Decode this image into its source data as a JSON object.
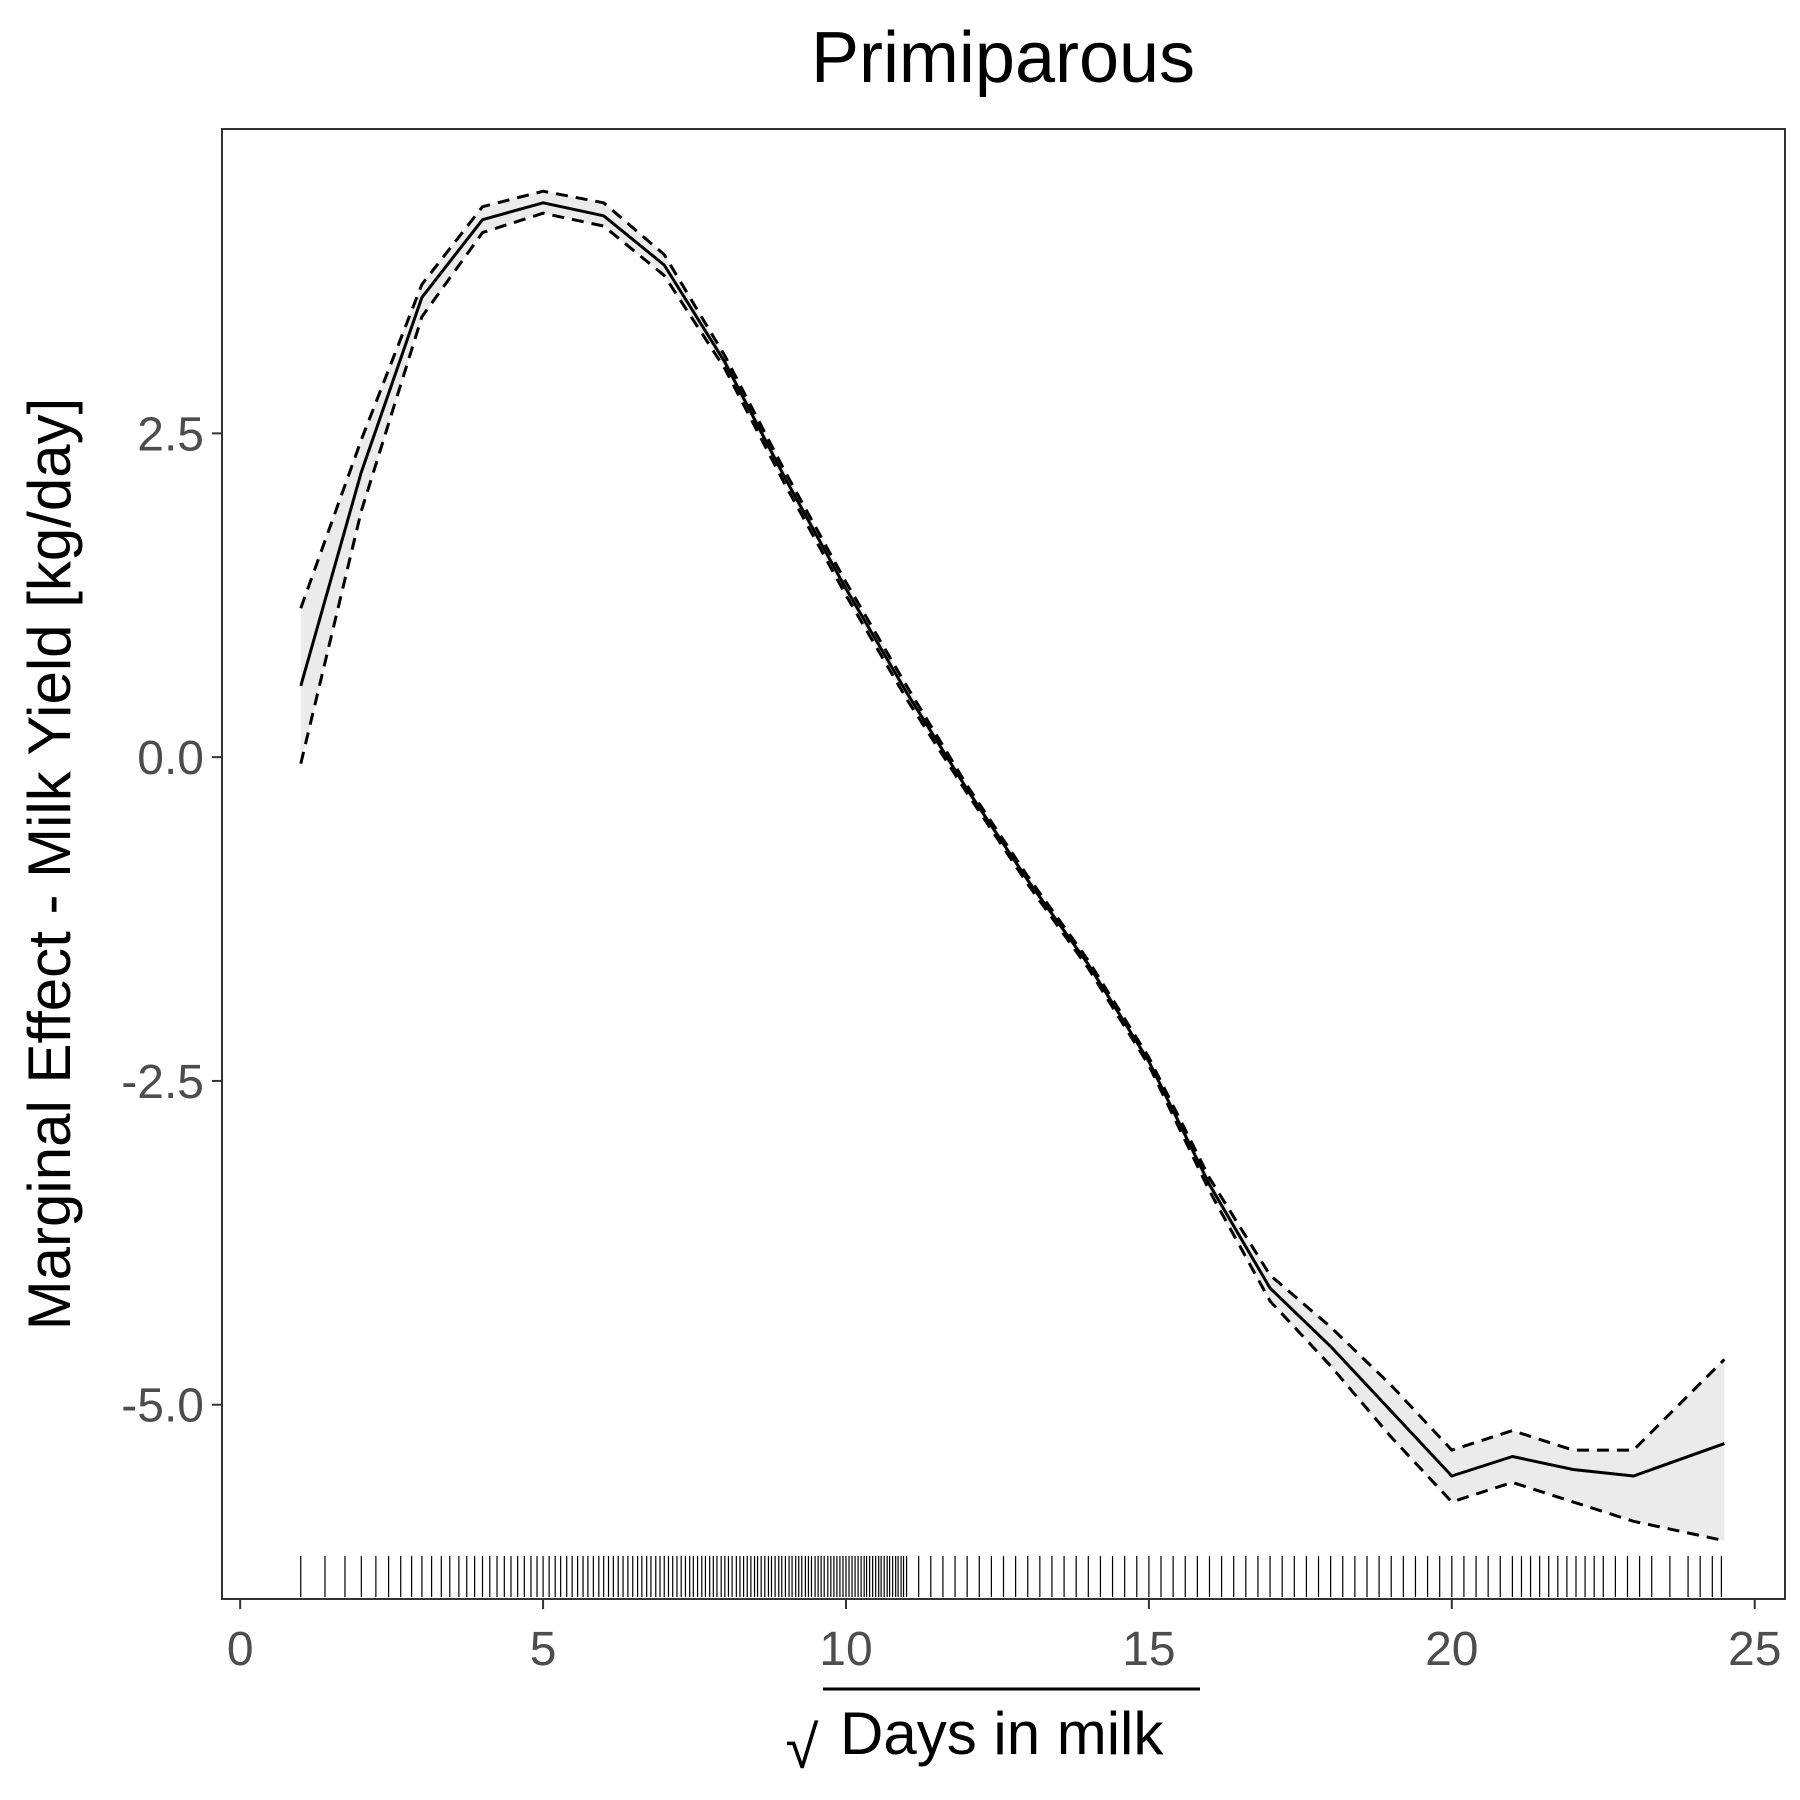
{
  "chart_data": {
    "type": "line",
    "title": "Primiparous",
    "xlabel": "Days in milk",
    "xlabel_radical": "√",
    "ylabel": "Marginal Effect - Milk Yield [kg/day]",
    "xlim": [
      -0.3,
      25.5
    ],
    "ylim": [
      -6.5,
      4.85
    ],
    "x_ticks": [
      0,
      5,
      10,
      15,
      20,
      25
    ],
    "x_tick_labels": [
      "0",
      "5",
      "10",
      "15",
      "20",
      "25"
    ],
    "y_ticks": [
      -5.0,
      -2.5,
      0.0,
      2.5
    ],
    "y_tick_labels": [
      "-5.0",
      "-2.5",
      "0.0",
      "2.5"
    ],
    "grid": false,
    "colors": {
      "line": "#000000",
      "ribbon": "#ebebeb",
      "panel_border": "#333333",
      "tick_label": "#4d4d4d"
    },
    "series": [
      {
        "role": "estimate",
        "style": "solid",
        "x": [
          1,
          2,
          3,
          4,
          5,
          6,
          7,
          8,
          9,
          10,
          11,
          12,
          13,
          14,
          15,
          16,
          17,
          18,
          19,
          20,
          21,
          22,
          23,
          24.5
        ],
        "y": [
          0.55,
          2.2,
          3.55,
          4.15,
          4.28,
          4.18,
          3.8,
          3.05,
          2.15,
          1.3,
          0.5,
          -0.25,
          -0.95,
          -1.6,
          -2.35,
          -3.3,
          -4.1,
          -4.55,
          -5.05,
          -5.55,
          -5.4,
          -5.5,
          -5.55,
          -5.3
        ]
      },
      {
        "role": "upper",
        "style": "dashed",
        "x": [
          1,
          2,
          3,
          4,
          5,
          6,
          7,
          8,
          9,
          10,
          11,
          12,
          13,
          14,
          15,
          16,
          17,
          18,
          19,
          20,
          21,
          22,
          23,
          24.5
        ],
        "y": [
          1.15,
          2.45,
          3.65,
          4.25,
          4.37,
          4.28,
          3.88,
          3.1,
          2.2,
          1.35,
          0.55,
          -0.22,
          -0.92,
          -1.57,
          -2.32,
          -3.25,
          -4.0,
          -4.4,
          -4.85,
          -5.35,
          -5.2,
          -5.35,
          -5.35,
          -4.65
        ]
      },
      {
        "role": "lower",
        "style": "dashed",
        "x": [
          1,
          2,
          3,
          4,
          5,
          6,
          7,
          8,
          9,
          10,
          11,
          12,
          13,
          14,
          15,
          16,
          17,
          18,
          19,
          20,
          21,
          22,
          23,
          24.5
        ],
        "y": [
          -0.05,
          1.9,
          3.4,
          4.05,
          4.2,
          4.1,
          3.72,
          3.0,
          2.1,
          1.25,
          0.45,
          -0.28,
          -0.98,
          -1.63,
          -2.38,
          -3.35,
          -4.2,
          -4.7,
          -5.25,
          -5.75,
          -5.6,
          -5.75,
          -5.9,
          -6.05
        ]
      }
    ],
    "rug_x": [
      1.0,
      1.4,
      1.73,
      2.0,
      2.24,
      2.45,
      2.65,
      2.83,
      3.0,
      3.16,
      3.32,
      3.46,
      3.61,
      3.74,
      3.87,
      4.0,
      4.12,
      4.24,
      4.36,
      4.47,
      4.58,
      4.69,
      4.8,
      4.9,
      5.0,
      5.1,
      5.2,
      5.29,
      5.39,
      5.48,
      5.57,
      5.66,
      5.74,
      5.83,
      5.92,
      6.0,
      6.08,
      6.16,
      6.24,
      6.32,
      6.4,
      6.48,
      6.56,
      6.63,
      6.71,
      6.78,
      6.86,
      6.93,
      7.0,
      7.07,
      7.14,
      7.21,
      7.28,
      7.35,
      7.42,
      7.48,
      7.55,
      7.62,
      7.68,
      7.75,
      7.81,
      7.87,
      7.94,
      8.0,
      8.06,
      8.12,
      8.19,
      8.25,
      8.31,
      8.37,
      8.43,
      8.49,
      8.54,
      8.6,
      8.66,
      8.72,
      8.77,
      8.83,
      8.89,
      8.94,
      9.0,
      9.06,
      9.11,
      9.17,
      9.22,
      9.27,
      9.33,
      9.38,
      9.43,
      9.49,
      9.54,
      9.59,
      9.64,
      9.7,
      9.75,
      9.8,
      9.85,
      9.9,
      9.95,
      10.0,
      10.05,
      10.1,
      10.15,
      10.2,
      10.25,
      10.3,
      10.34,
      10.39,
      10.44,
      10.49,
      10.54,
      10.58,
      10.63,
      10.68,
      10.72,
      10.77,
      10.82,
      10.86,
      10.91,
      10.95,
      11.0,
      11.2,
      11.4,
      11.6,
      11.8,
      12.0,
      12.2,
      12.4,
      12.6,
      12.8,
      13.0,
      13.2,
      13.4,
      13.6,
      13.8,
      14.0,
      14.2,
      14.4,
      14.6,
      14.8,
      15.0,
      15.2,
      15.4,
      15.6,
      15.8,
      16.0,
      16.2,
      16.4,
      16.6,
      16.8,
      17.0,
      17.2,
      17.4,
      17.6,
      17.8,
      18.0,
      18.2,
      18.4,
      18.6,
      18.8,
      19.0,
      19.2,
      19.4,
      19.6,
      19.8,
      20.0,
      20.2,
      20.4,
      20.6,
      20.8,
      21.0,
      21.15,
      21.3,
      21.45,
      21.6,
      21.75,
      21.9,
      22.05,
      22.2,
      22.35,
      22.5,
      22.7,
      22.9,
      23.1,
      23.3,
      23.6,
      23.9,
      24.1,
      24.3,
      24.45
    ]
  }
}
